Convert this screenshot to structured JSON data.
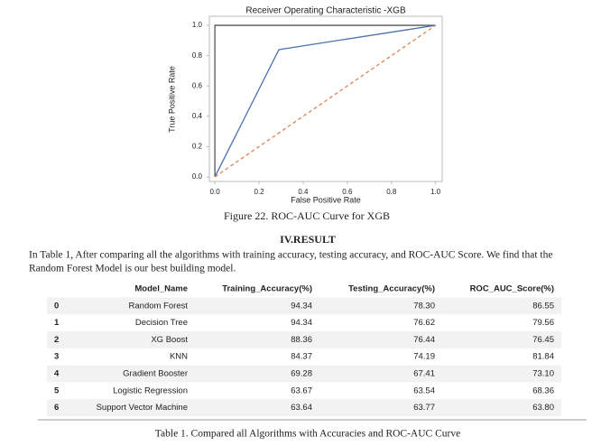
{
  "chart_data": {
    "type": "line",
    "title": "Receiver Operating Characteristic -XGB",
    "xlabel": "False Positive Rate",
    "ylabel": "True Positive Rate",
    "series": [
      {
        "color": "#555555",
        "x": [
          0,
          0,
          1
        ],
        "values": [
          0,
          1,
          1
        ],
        "style": "solid"
      },
      {
        "color": "#4c72b0",
        "x": [
          0,
          0.29,
          1
        ],
        "values": [
          0,
          0.84,
          1
        ],
        "style": "solid"
      },
      {
        "color": "#dd8452",
        "x": [
          0,
          1
        ],
        "values": [
          0,
          1
        ],
        "style": "dashed"
      }
    ],
    "xlim": [
      -0.025,
      1.03
    ],
    "ylim": [
      -0.03,
      1.06
    ],
    "xticks": [
      {
        "value": 0,
        "label": "0.0"
      },
      0.2,
      0.4,
      0.6,
      0.8,
      {
        "value": 1,
        "label": "1.0"
      }
    ],
    "yticks": [
      {
        "value": 0,
        "label": "0.0"
      },
      0.2,
      0.4,
      0.6,
      0.8,
      {
        "value": 1,
        "label": "1.0"
      }
    ],
    "grid": false
  },
  "figure_caption": "Figure 22. ROC-AUC Curve for XGB",
  "section_title": "IV.RESULT",
  "paragraph": [
    "In Table 1, After comparing all the algorithms with training accuracy, testing accuracy, and ROC-AUC Score. We find that the",
    "Random Forest Model is our best building model."
  ],
  "table": {
    "header": [
      "",
      "Model_Name",
      "Training_Accuracy(%)",
      "Testing_Accuracy(%)",
      "ROC_AUC_Score(%)"
    ],
    "rows": [
      [
        "0",
        "Random Forest",
        "94.34",
        "78.30",
        "86.55"
      ],
      [
        "1",
        "Decision Tree",
        "94.34",
        "76.62",
        "79.56"
      ],
      [
        "2",
        "XG Boost",
        "88.36",
        "76.44",
        "76.45"
      ],
      [
        "3",
        "KNN",
        "84.37",
        "74.19",
        "81.84"
      ],
      [
        "4",
        "Gradient Booster",
        "69.28",
        "67.41",
        "73.10"
      ],
      [
        "5",
        "Logistic Regression",
        "63.67",
        "63.54",
        "68.36"
      ],
      [
        "6",
        "Support Vector Machine",
        "63.64",
        "63.77",
        "63.80"
      ]
    ]
  },
  "table_caption": "Table 1. Compared all Algorithms with Accuracies and ROC-AUC Curve"
}
